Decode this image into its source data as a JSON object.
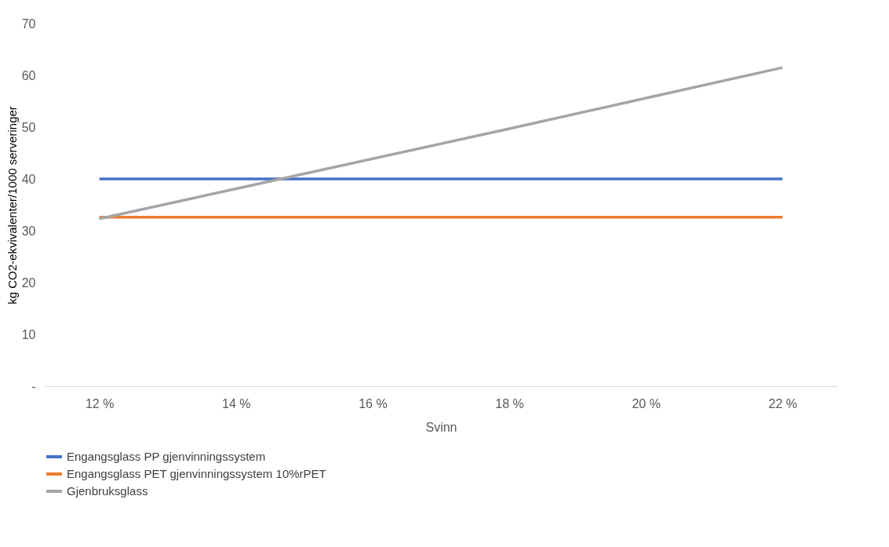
{
  "chart_data": {
    "type": "line",
    "xlabel": "Svinn",
    "ylabel": "kg CO2-ekvivalenter/1000 serveringer",
    "categories": [
      "12 %",
      "14 %",
      "16 %",
      "18 %",
      "20 %",
      "22 %"
    ],
    "series": [
      {
        "name": "Engangsglass PP gjenvinningssystem",
        "color": "#4472c4",
        "values": [
          40,
          40,
          40,
          40,
          40,
          40
        ]
      },
      {
        "name": "Engangsglass PET gjenvinningssystem 10%rPET",
        "color": "#ed7d31",
        "values": [
          32.6,
          32.6,
          32.6,
          32.6,
          32.6,
          32.6
        ]
      },
      {
        "name": "Gjenbruksglass",
        "color": "#a5a5a5",
        "values": [
          32.3,
          38.1,
          43.9,
          49.7,
          55.6,
          61.5
        ]
      }
    ],
    "ylim": [
      0,
      70
    ],
    "yticks": [
      {
        "value": 0,
        "label": "-"
      },
      10,
      20,
      30,
      40,
      50,
      60,
      70
    ],
    "grid": false,
    "legend": "bottom",
    "marker": "none",
    "line_style": "solid"
  }
}
